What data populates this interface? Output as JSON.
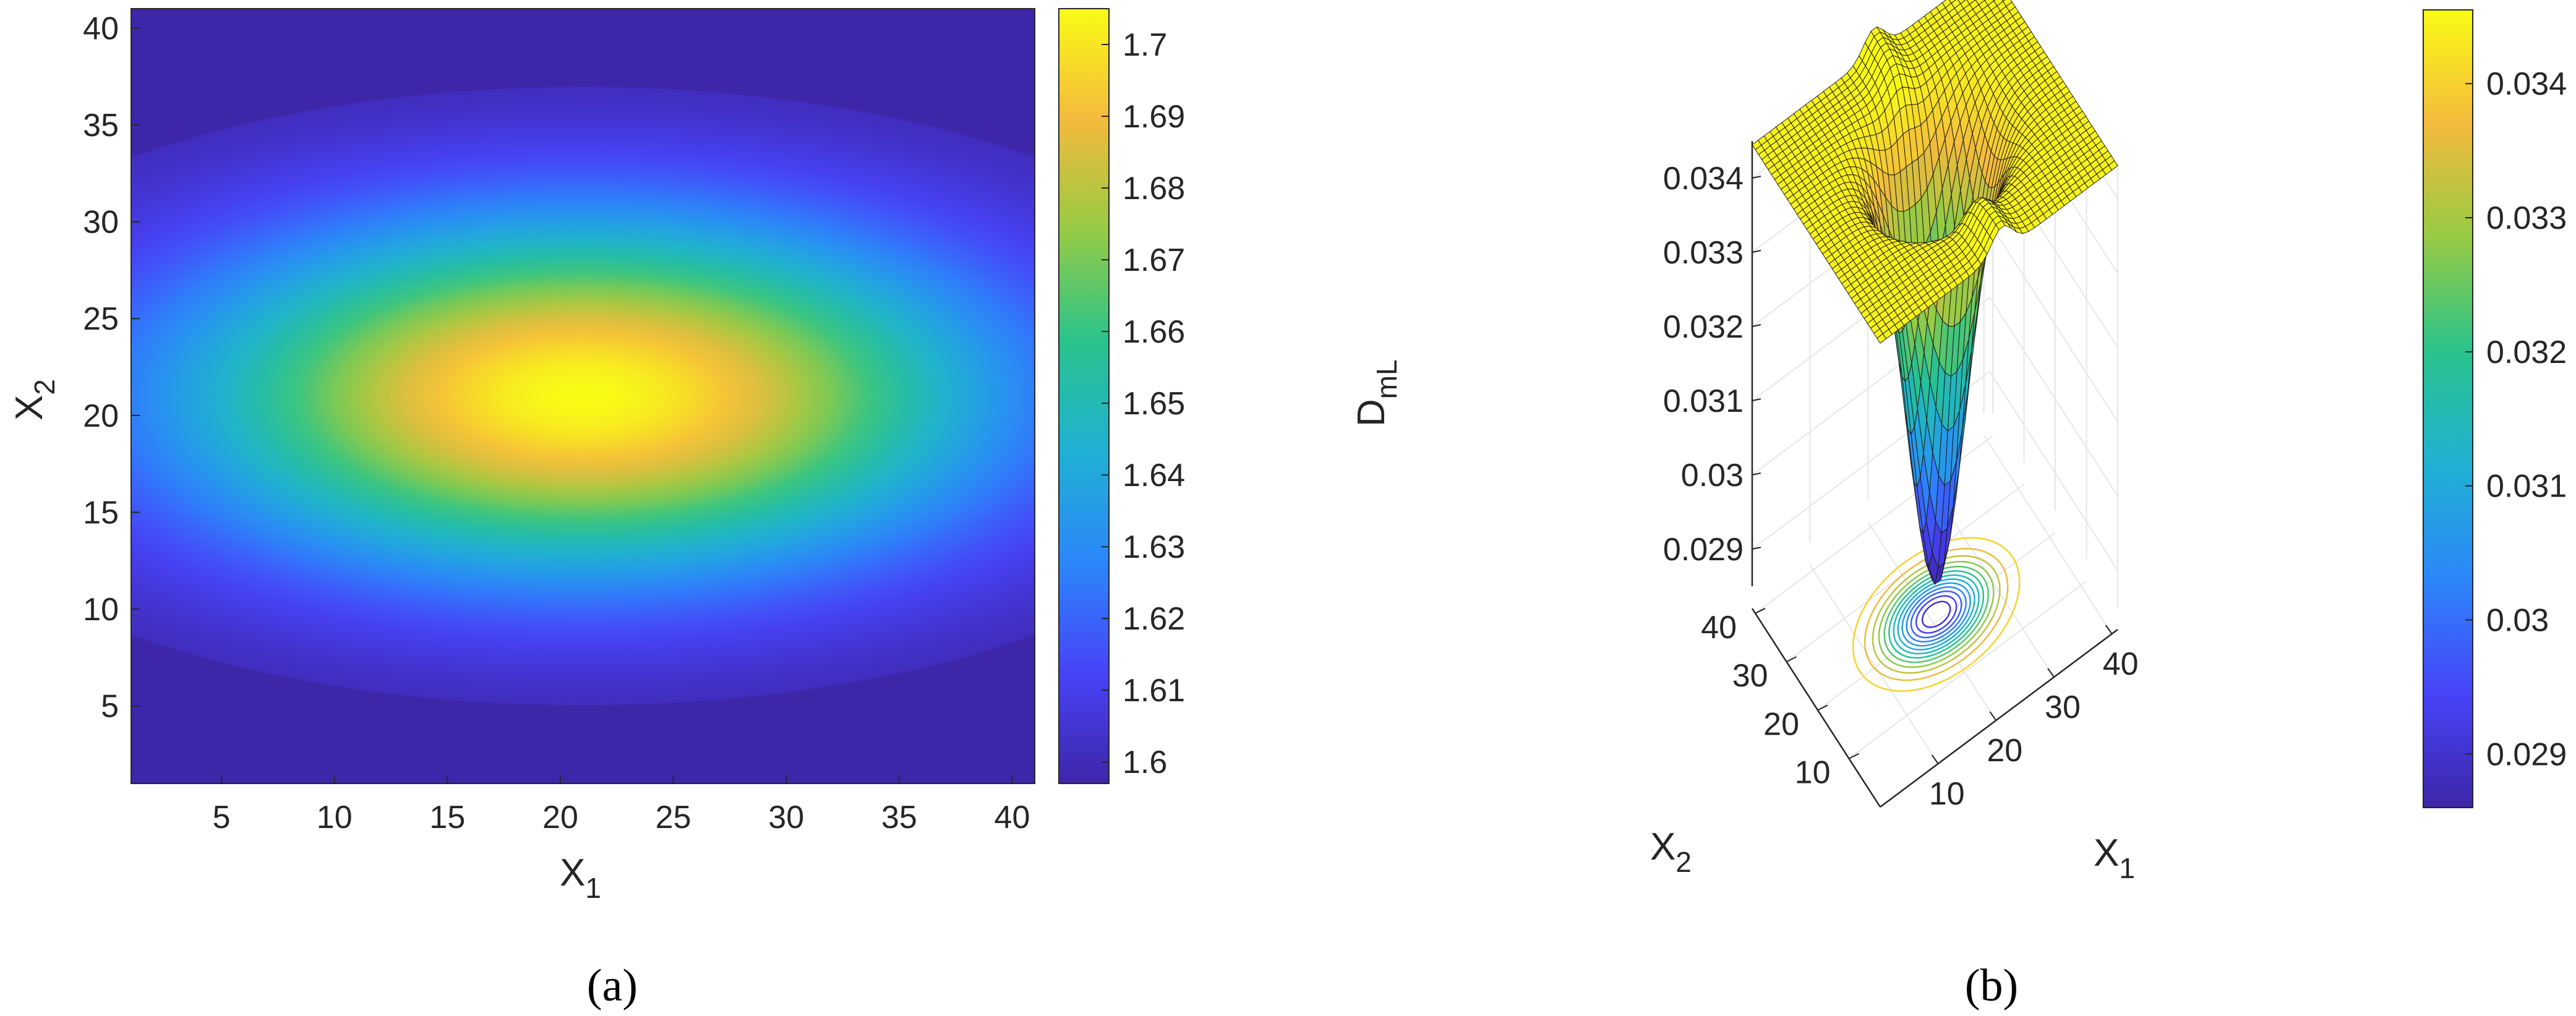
{
  "colors": {
    "colormap": [
      "#3e26a8",
      "#4743f8",
      "#2c87fa",
      "#1fb1d3",
      "#29c38c",
      "#96cb44",
      "#f4ba3d",
      "#f9fb15"
    ],
    "mesh_line": "#1a1a1a",
    "grid": "#e6e6e6",
    "axis": "#262626"
  },
  "chart_data": [
    {
      "type": "heatmap",
      "panel_label": "(a)",
      "xlabel": "X",
      "xlabel_sub": "1",
      "ylabel": "X",
      "ylabel_sub": "2",
      "xlim": [
        1,
        41
      ],
      "ylim": [
        1,
        41
      ],
      "xticks": [
        5,
        10,
        15,
        20,
        25,
        30,
        35,
        40
      ],
      "yticks": [
        5,
        10,
        15,
        20,
        25,
        30,
        35,
        40
      ],
      "peak": {
        "x": 21,
        "y": 21
      },
      "value_range": [
        1.597,
        1.705
      ],
      "colorbar": {
        "ticks": [
          1.6,
          1.61,
          1.62,
          1.63,
          1.64,
          1.65,
          1.66,
          1.67,
          1.68,
          1.69,
          1.7
        ],
        "tick_labels": [
          "1.6",
          "1.61",
          "1.62",
          "1.63",
          "1.64",
          "1.65",
          "1.66",
          "1.67",
          "1.68",
          "1.69",
          "1.7"
        ],
        "range": [
          1.597,
          1.705
        ]
      }
    },
    {
      "type": "surface",
      "panel_label": "(b)",
      "xlabel": "X",
      "xlabel_sub": "1",
      "ylabel": "X",
      "ylabel_sub": "2",
      "zlabel": "D",
      "zlabel_sub": "mL",
      "xlim": [
        0,
        41
      ],
      "ylim": [
        0,
        41
      ],
      "zlim": [
        0.0285,
        0.0345
      ],
      "xticks": [
        10,
        20,
        30,
        40
      ],
      "yticks": [
        10,
        20,
        30,
        40
      ],
      "zticks": [
        0.029,
        0.03,
        0.031,
        0.032,
        0.033,
        0.034
      ],
      "ztick_labels": [
        "0.029",
        "0.03",
        "0.031",
        "0.032",
        "0.033",
        "0.034"
      ],
      "min": {
        "x": 21,
        "y": 21,
        "z": 0.0286
      },
      "plateau_z": 0.03445,
      "grid": true,
      "contour_projection": true,
      "colorbar": {
        "ticks": [
          0.029,
          0.03,
          0.031,
          0.032,
          0.033,
          0.034
        ],
        "tick_labels": [
          "0.029",
          "0.03",
          "0.031",
          "0.032",
          "0.033",
          "0.034"
        ],
        "range": [
          0.0286,
          0.03455
        ]
      }
    }
  ]
}
